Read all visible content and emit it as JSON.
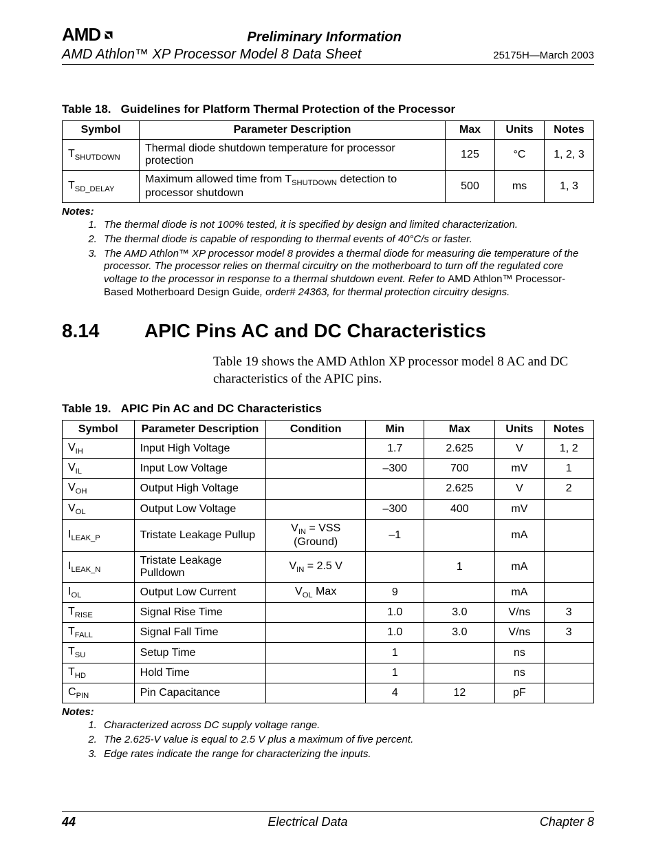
{
  "header": {
    "logo": "AMD",
    "prelim": "Preliminary Information",
    "doc_title": "AMD Athlon™ XP Processor Model 8 Data Sheet",
    "doc_rev": "25175H—March 2003"
  },
  "table18": {
    "caption_prefix": "Table 18.",
    "caption": "Guidelines for Platform Thermal Protection of the Processor",
    "headers": {
      "symbol": "Symbol",
      "desc": "Parameter Description",
      "max": "Max",
      "units": "Units",
      "notes": "Notes"
    },
    "rows": [
      {
        "sym_base": "T",
        "sym_sub": "SHUTDOWN",
        "desc": "Thermal diode shutdown temperature for processor protection",
        "max": "125",
        "units": "°C",
        "notes": "1, 2, 3"
      },
      {
        "sym_base": "T",
        "sym_sub": "SD_DELAY",
        "desc_pre": "Maximum allowed time from T",
        "desc_sub": "SHUTDOWN",
        "desc_post": " detection to processor shutdown",
        "max": "500",
        "units": "ms",
        "notes": "1, 3"
      }
    ],
    "notes_head": "Notes:",
    "notes": [
      "The thermal diode is not 100% tested, it is specified by design and limited characterization.",
      "The thermal diode is capable of responding to thermal events of 40°C/s or faster."
    ],
    "note3_a": "The AMD Athlon™ XP processor model 8 provides a thermal diode for measuring die temperature of the processor. The processor relies on thermal circuitry on the motherboard to turn off the regulated core voltage to the processor in response to a thermal shutdown event. Refer to ",
    "note3_b": "AMD Athlon™ Processor-Based Motherboard Design Guide",
    "note3_c": ", order# 24363, for thermal protection circuitry designs."
  },
  "section": {
    "num": "8.14",
    "title": "APIC Pins AC and DC Characteristics",
    "para": "Table 19 shows the AMD Athlon XP processor model 8 AC and DC characteristics of the APIC pins."
  },
  "table19": {
    "caption_prefix": "Table 19.",
    "caption": "APIC Pin AC and DC Characteristics",
    "headers": {
      "symbol": "Symbol",
      "desc": "Parameter Description",
      "cond": "Condition",
      "min": "Min",
      "max": "Max",
      "units": "Units",
      "notes": "Notes"
    },
    "rows": [
      {
        "sb": "V",
        "ss": "IH",
        "desc": "Input High Voltage",
        "cond": "",
        "min": "1.7",
        "max": "2.625",
        "units": "V",
        "notes": "1, 2"
      },
      {
        "sb": "V",
        "ss": "IL",
        "desc": "Input Low Voltage",
        "cond": "",
        "min": "–300",
        "max": "700",
        "units": "mV",
        "notes": "1"
      },
      {
        "sb": "V",
        "ss": "OH",
        "desc": "Output High Voltage",
        "cond": "",
        "min": "",
        "max": "2.625",
        "units": "V",
        "notes": "2"
      },
      {
        "sb": "V",
        "ss": "OL",
        "desc": "Output Low Voltage",
        "cond": "",
        "min": "–300",
        "max": "400",
        "units": "mV",
        "notes": ""
      },
      {
        "sb": "I",
        "ss": "LEAK_P",
        "desc": "Tristate Leakage Pullup",
        "cond_pre": "V",
        "cond_sub": "IN",
        "cond_post": " = VSS (Ground)",
        "min": "–1",
        "max": "",
        "units": "mA",
        "notes": ""
      },
      {
        "sb": "I",
        "ss": "LEAK_N",
        "desc": "Tristate Leakage Pulldown",
        "cond_pre": "V",
        "cond_sub": "IN",
        "cond_post": " = 2.5 V",
        "min": "",
        "max": "1",
        "units": "mA",
        "notes": ""
      },
      {
        "sb": "I",
        "ss": "OL",
        "desc": "Output Low Current",
        "cond_pre": "V",
        "cond_sub": "OL",
        "cond_post": " Max",
        "min": "9",
        "max": "",
        "units": "mA",
        "notes": ""
      },
      {
        "sb": "T",
        "ss": "RISE",
        "desc": "Signal Rise Time",
        "cond": "",
        "min": "1.0",
        "max": "3.0",
        "units": "V/ns",
        "notes": "3"
      },
      {
        "sb": "T",
        "ss": "FALL",
        "desc": "Signal Fall Time",
        "cond": "",
        "min": "1.0",
        "max": "3.0",
        "units": "V/ns",
        "notes": "3"
      },
      {
        "sb": "T",
        "ss": "SU",
        "desc": "Setup Time",
        "cond": "",
        "min": "1",
        "max": "",
        "units": "ns",
        "notes": ""
      },
      {
        "sb": "T",
        "ss": "HD",
        "desc": "Hold Time",
        "cond": "",
        "min": "1",
        "max": "",
        "units": "ns",
        "notes": ""
      },
      {
        "sb": "C",
        "ss": "PIN",
        "desc": "Pin Capacitance",
        "cond": "",
        "min": "4",
        "max": "12",
        "units": "pF",
        "notes": ""
      }
    ],
    "notes_head": "Notes:",
    "notes": [
      "Characterized across DC supply voltage range.",
      "The 2.625-V value is equal to 2.5 V plus a maximum of five percent.",
      "Edge rates indicate the range for characterizing the inputs."
    ]
  },
  "footer": {
    "page": "44",
    "center": "Electrical Data",
    "right": "Chapter 8"
  }
}
